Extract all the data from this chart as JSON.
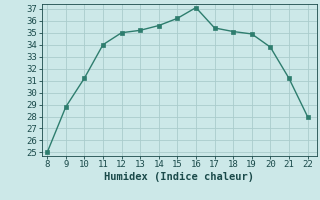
{
  "x": [
    8,
    9,
    10,
    11,
    12,
    13,
    14,
    15,
    16,
    17,
    18,
    19,
    20,
    21,
    22
  ],
  "y": [
    25.0,
    28.8,
    31.2,
    34.0,
    35.0,
    35.2,
    35.6,
    36.2,
    37.1,
    35.4,
    35.1,
    34.9,
    33.8,
    31.2,
    28.0
  ],
  "xlabel": "Humidex (Indice chaleur)",
  "ylim": [
    25,
    37
  ],
  "xlim": [
    8,
    22
  ],
  "yticks": [
    25,
    26,
    27,
    28,
    29,
    30,
    31,
    32,
    33,
    34,
    35,
    36,
    37
  ],
  "xticks": [
    8,
    9,
    10,
    11,
    12,
    13,
    14,
    15,
    16,
    17,
    18,
    19,
    20,
    21,
    22
  ],
  "line_color": "#2e7d6e",
  "marker_color": "#2e7d6e",
  "bg_color": "#cce8e8",
  "grid_color": "#aacccc",
  "tick_color": "#1a4a4a",
  "label_fontsize": 7.5,
  "tick_fontsize": 6.5
}
